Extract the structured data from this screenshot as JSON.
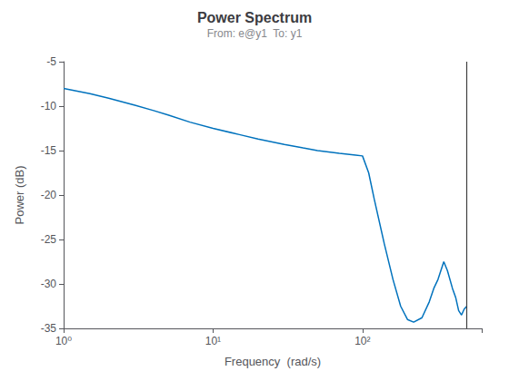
{
  "chart_data": {
    "type": "line",
    "title": "Power Spectrum",
    "subtitle": "From: e@y1  To: y1",
    "xlabel": "Frequency  (rad/s)",
    "ylabel": "Power (dB)",
    "x": [
      1.0,
      1.5,
      2.0,
      3.0,
      4.0,
      5.0,
      7.0,
      10.0,
      15.0,
      20.0,
      30.0,
      40.0,
      50.0,
      70.0,
      90.0,
      100.0,
      110.0,
      120.0,
      140.0,
      160.0,
      180.0,
      200.0,
      220.0,
      250.0,
      280.0,
      300.0,
      320.0,
      350.0,
      370.0,
      400.0,
      420.0,
      440.0,
      460.0,
      480.0,
      500.0
    ],
    "values": [
      -8.0,
      -8.6,
      -9.1,
      -9.9,
      -10.5,
      -11.0,
      -11.8,
      -12.5,
      -13.2,
      -13.7,
      -14.3,
      -14.7,
      -15.0,
      -15.3,
      -15.5,
      -15.6,
      -17.5,
      -20.5,
      -25.5,
      -29.5,
      -32.5,
      -34.0,
      -34.3,
      -33.8,
      -32.0,
      -30.5,
      -29.5,
      -27.5,
      -28.5,
      -30.5,
      -31.5,
      -33.0,
      -33.5,
      -32.8,
      -32.5
    ],
    "color": "#0072BD",
    "log": "x",
    "xlim": [
      1,
      628
    ],
    "ylim": [
      -35,
      -5
    ],
    "xticks": [
      {
        "value": 1,
        "label": "10⁰"
      },
      {
        "value": 10,
        "label": "10¹"
      },
      {
        "value": 100,
        "label": "10²"
      }
    ],
    "yticks": [
      -35,
      -30,
      -25,
      -20,
      -15,
      -10,
      -5
    ],
    "grid": false,
    "vlines": [
      {
        "x": 500,
        "color": "#404040"
      }
    ]
  }
}
